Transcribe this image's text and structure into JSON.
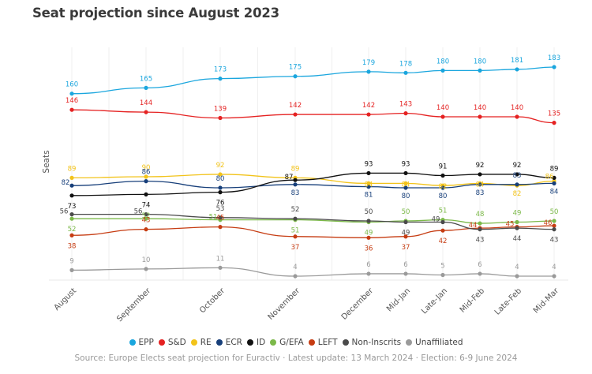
{
  "chart_data": {
    "type": "line",
    "title": "Seat projection since August 2023",
    "xlabel": "",
    "ylabel": "Seats",
    "ylim": [
      0,
      190
    ],
    "grid": "vertical",
    "legend_position": "bottom",
    "categories": [
      "August",
      "September",
      "October",
      "November",
      "December",
      "Mid-Jan",
      "Late-Jan",
      "Mid-Feb",
      "Late-Feb",
      "Mid-Mar"
    ],
    "series": [
      {
        "name": "EPP",
        "color": "#1aa6de",
        "values": [
          160,
          165,
          173,
          175,
          179,
          178,
          180,
          180,
          181,
          183
        ]
      },
      {
        "name": "S&D",
        "color": "#e52222",
        "values": [
          146,
          144,
          139,
          142,
          142,
          143,
          140,
          140,
          140,
          135
        ]
      },
      {
        "name": "RE",
        "color": "#f2c31a",
        "values": [
          89,
          90,
          92,
          89,
          84,
          84,
          82,
          84,
          82,
          86
        ]
      },
      {
        "name": "ECR",
        "color": "#173f7a",
        "values": [
          82,
          86,
          80,
          83,
          81,
          80,
          80,
          83,
          83,
          84
        ]
      },
      {
        "name": "ID",
        "color": "#111111",
        "values": [
          73,
          74,
          76,
          87,
          93,
          93,
          91,
          92,
          92,
          89
        ]
      },
      {
        "name": "G/EFA",
        "color": "#7cb94a",
        "values": [
          52,
          52,
          51,
          51,
          49,
          50,
          51,
          48,
          49,
          50
        ]
      },
      {
        "name": "LEFT",
        "color": "#c63c12",
        "values": [
          38,
          43,
          45,
          37,
          36,
          37,
          42,
          44,
          45,
          46
        ]
      },
      {
        "name": "Non-Inscrits",
        "color": "#4a4a4a",
        "values": [
          56,
          56,
          53,
          52,
          50,
          49,
          49,
          43,
          44,
          43
        ]
      },
      {
        "name": "Unaffiliated",
        "color": "#9a9a9a",
        "values": [
          9,
          10,
          11,
          4,
          6,
          6,
          5,
          6,
          4,
          4
        ]
      }
    ],
    "source": "Source: Europe Elects seat projection for Euractiv · Latest update: 13 March 2024 ·  Election: 6-9 June 2024"
  }
}
